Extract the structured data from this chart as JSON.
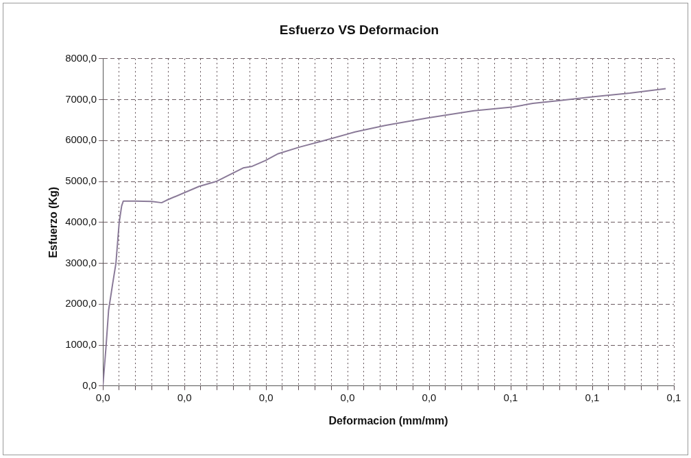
{
  "chart_data": {
    "type": "line",
    "title": "Esfuerzo VS Deformacion",
    "xlabel": "Deformacion (mm/mm)",
    "ylabel": "Esfuerzo (Kg)",
    "x": [
      0,
      0.0004,
      0.0007,
      0.0012,
      0.0016,
      0.002,
      0.0023,
      0.0025,
      0.004,
      0.006,
      0.0072,
      0.0078,
      0.0118,
      0.0139,
      0.0172,
      0.0183,
      0.0199,
      0.0215,
      0.0241,
      0.0273,
      0.0309,
      0.0346,
      0.0397,
      0.0455,
      0.0503,
      0.0527,
      0.0557,
      0.0602,
      0.0646,
      0.069
    ],
    "series": [
      {
        "color": "#8a7a98",
        "values": [
          0,
          1000,
          1850,
          2500,
          3000,
          4000,
          4400,
          4520,
          4520,
          4510,
          4480,
          4540,
          4880,
          5000,
          5330,
          5370,
          5510,
          5680,
          5840,
          6010,
          6210,
          6370,
          6550,
          6730,
          6820,
          6910,
          6970,
          7070,
          7160,
          7270
        ]
      }
    ],
    "xlim": [
      0,
      0.07
    ],
    "xticks": [
      {
        "value": 0,
        "label": "0,0"
      },
      {
        "value": 0.002,
        "label": null
      },
      {
        "value": 0.004,
        "label": null
      },
      {
        "value": 0.006,
        "label": null
      },
      {
        "value": 0.008,
        "label": null
      },
      {
        "value": 0.01,
        "label": "0,0"
      },
      {
        "value": 0.012,
        "label": null
      },
      {
        "value": 0.014,
        "label": null
      },
      {
        "value": 0.016,
        "label": null
      },
      {
        "value": 0.018,
        "label": null
      },
      {
        "value": 0.02,
        "label": "0,0"
      },
      {
        "value": 0.022,
        "label": null
      },
      {
        "value": 0.024,
        "label": null
      },
      {
        "value": 0.026,
        "label": null
      },
      {
        "value": 0.028,
        "label": null
      },
      {
        "value": 0.03,
        "label": "0,0"
      },
      {
        "value": 0.032,
        "label": null
      },
      {
        "value": 0.034,
        "label": null
      },
      {
        "value": 0.036,
        "label": null
      },
      {
        "value": 0.038,
        "label": null
      },
      {
        "value": 0.04,
        "label": "0,0"
      },
      {
        "value": 0.042,
        "label": null
      },
      {
        "value": 0.044,
        "label": null
      },
      {
        "value": 0.046,
        "label": null
      },
      {
        "value": 0.048,
        "label": null
      },
      {
        "value": 0.05,
        "label": "0,1"
      },
      {
        "value": 0.052,
        "label": null
      },
      {
        "value": 0.054,
        "label": null
      },
      {
        "value": 0.056,
        "label": null
      },
      {
        "value": 0.058,
        "label": null
      },
      {
        "value": 0.06,
        "label": "0,1"
      },
      {
        "value": 0.062,
        "label": null
      },
      {
        "value": 0.064,
        "label": null
      },
      {
        "value": 0.066,
        "label": null
      },
      {
        "value": 0.068,
        "label": null
      },
      {
        "value": 0.07,
        "label": "0,1"
      }
    ],
    "ylim": [
      0,
      8000
    ],
    "yticks": [
      {
        "value": 0,
        "label": "0,0"
      },
      {
        "value": 1000,
        "label": "1000,0"
      },
      {
        "value": 2000,
        "label": "2000,0"
      },
      {
        "value": 3000,
        "label": "3000,0"
      },
      {
        "value": 4000,
        "label": "4000,0"
      },
      {
        "value": 5000,
        "label": "5000,0"
      },
      {
        "value": 6000,
        "label": "6000,0"
      },
      {
        "value": 7000,
        "label": "7000,0"
      },
      {
        "value": 8000,
        "label": "8000,0"
      }
    ],
    "grid": true,
    "legend": false,
    "marker": "none",
    "line_style": "solid"
  }
}
